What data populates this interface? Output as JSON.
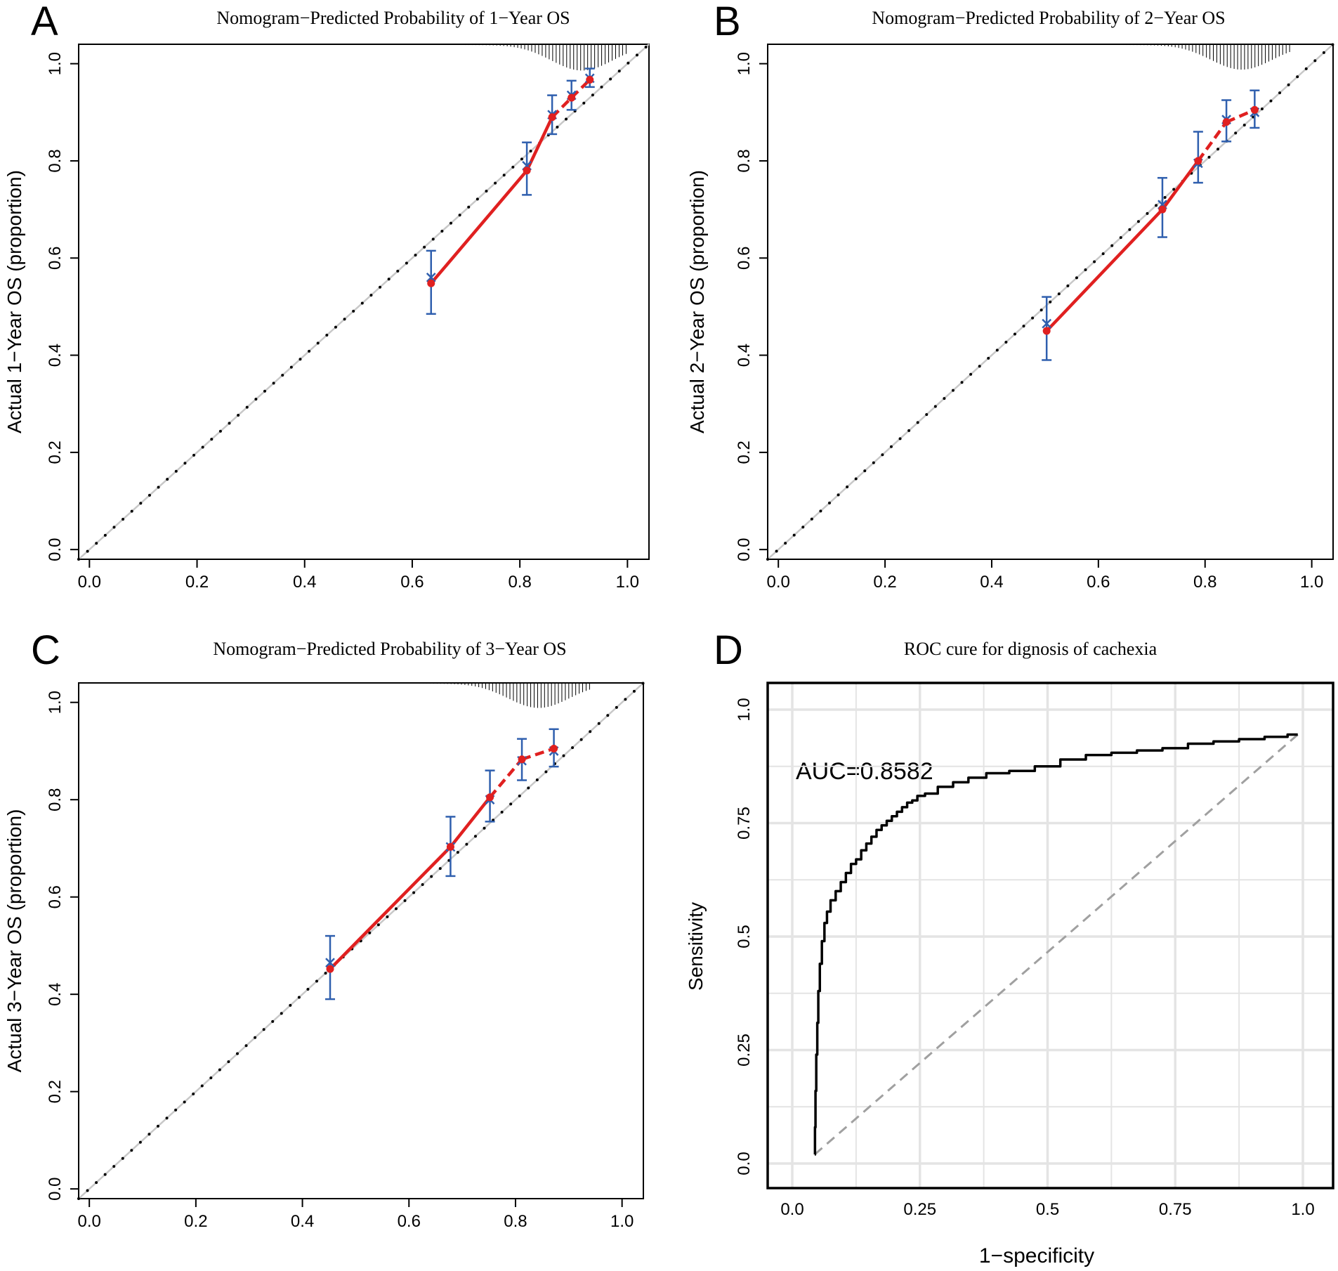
{
  "chart_data": [
    {
      "panel": "A",
      "type": "line",
      "title": "Nomogram−Predicted Probability of 1−Year OS",
      "xlabel": "",
      "ylabel": "Actual 1−Year OS (proportion)",
      "xlim": [
        -0.02,
        1.04
      ],
      "ylim": [
        -0.02,
        1.04
      ],
      "xticks": [
        "0.0",
        "0.2",
        "0.4",
        "0.6",
        "0.8",
        "1.0"
      ],
      "yticks": [
        "0.0",
        "0.2",
        "0.4",
        "0.6",
        "0.8",
        "1.0"
      ],
      "colors": {
        "line": "#e02020",
        "error_bar": "#2f5fae",
        "ideal": "#000000",
        "reference": "#c8c8c8"
      },
      "calibration": {
        "x": [
          0.635,
          0.813,
          0.86,
          0.896,
          0.93
        ],
        "y": [
          0.548,
          0.78,
          0.89,
          0.93,
          0.967
        ],
        "lower": [
          0.485,
          0.73,
          0.855,
          0.905,
          0.952
        ],
        "upper": [
          0.615,
          0.838,
          0.935,
          0.965,
          0.99
        ],
        "observed_x": [
          0.635,
          0.813,
          0.86,
          0.896,
          0.93
        ],
        "observed_y": [
          0.56,
          0.79,
          0.895,
          0.935,
          0.97
        ]
      },
      "rug": [
        {
          "x": 0.87,
          "len": 14
        },
        {
          "x": 0.93,
          "len": 8
        }
      ]
    },
    {
      "panel": "B",
      "type": "line",
      "title": "Nomogram−Predicted Probability of 2−Year OS",
      "xlabel": "",
      "ylabel": "Actual 2−Year OS (proportion)",
      "xlim": [
        -0.02,
        1.04
      ],
      "ylim": [
        -0.02,
        1.04
      ],
      "xticks": [
        "0.0",
        "0.2",
        "0.4",
        "0.6",
        "0.8",
        "1.0"
      ],
      "yticks": [
        "0.0",
        "0.2",
        "0.4",
        "0.6",
        "0.8",
        "1.0"
      ],
      "colors": {
        "line": "#e02020",
        "error_bar": "#2f5fae",
        "ideal": "#000000",
        "reference": "#c8c8c8"
      },
      "calibration": {
        "x": [
          0.503,
          0.72,
          0.787,
          0.84,
          0.893
        ],
        "y": [
          0.45,
          0.7,
          0.8,
          0.88,
          0.905
        ],
        "lower": [
          0.39,
          0.643,
          0.755,
          0.84,
          0.868
        ],
        "upper": [
          0.52,
          0.765,
          0.86,
          0.925,
          0.945
        ],
        "observed_x": [
          0.503,
          0.72,
          0.787,
          0.84,
          0.893
        ],
        "observed_y": [
          0.465,
          0.71,
          0.795,
          0.885,
          0.9
        ]
      }
    },
    {
      "panel": "C",
      "type": "line",
      "title": "Nomogram−Predicted Probability of 3−Year OS",
      "xlabel": "",
      "ylabel": "Actual 3−Year OS (proportion)",
      "xlim": [
        -0.02,
        1.04
      ],
      "ylim": [
        -0.02,
        1.04
      ],
      "xticks": [
        "0.0",
        "0.2",
        "0.4",
        "0.6",
        "0.8",
        "1.0"
      ],
      "yticks": [
        "0.0",
        "0.2",
        "0.4",
        "0.6",
        "0.8",
        "1.0"
      ],
      "colors": {
        "line": "#e02020",
        "error_bar": "#2f5fae",
        "ideal": "#000000",
        "reference": "#c8c8c8"
      },
      "calibration": {
        "x": [
          0.452,
          0.678,
          0.752,
          0.812,
          0.872
        ],
        "y": [
          0.452,
          0.703,
          0.805,
          0.883,
          0.905
        ],
        "lower": [
          0.39,
          0.643,
          0.755,
          0.84,
          0.868
        ],
        "upper": [
          0.52,
          0.765,
          0.86,
          0.925,
          0.945
        ],
        "observed_x": [
          0.452,
          0.678,
          0.752,
          0.812,
          0.872
        ],
        "observed_y": [
          0.465,
          0.703,
          0.8,
          0.88,
          0.9
        ]
      }
    },
    {
      "panel": "D",
      "type": "line",
      "title": "ROC cure for dignosis of cachexia",
      "xlabel": "1−specificity",
      "ylabel": "Sensitivity",
      "xlim": [
        0.0,
        1.0
      ],
      "ylim": [
        0.0,
        1.0
      ],
      "xticks": [
        "0.0",
        "0.25",
        "0.5",
        "0.75",
        "1.0"
      ],
      "yticks": [
        "0.0",
        "0.25",
        "0.5",
        "0.75",
        "1.0"
      ],
      "annotation": "AUC=0.8582",
      "colors": {
        "curve": "#000000",
        "diagonal": "#a0a0a0",
        "grid": "#e4e4e4"
      },
      "roc_x": [
        0.044,
        0.045,
        0.046,
        0.048,
        0.05,
        0.052,
        0.056,
        0.06,
        0.066,
        0.07,
        0.08,
        0.09,
        0.1,
        0.11,
        0.12,
        0.13,
        0.14,
        0.15,
        0.16,
        0.17,
        0.18,
        0.19,
        0.2,
        0.21,
        0.22,
        0.23,
        0.24,
        0.25,
        0.27,
        0.3,
        0.33,
        0.36,
        0.4,
        0.45,
        0.5,
        0.55,
        0.6,
        0.65,
        0.7,
        0.75,
        0.8,
        0.85,
        0.9,
        0.95,
        0.99
      ],
      "roc_y": [
        0.02,
        0.08,
        0.16,
        0.24,
        0.31,
        0.38,
        0.44,
        0.49,
        0.53,
        0.555,
        0.58,
        0.6,
        0.62,
        0.64,
        0.66,
        0.67,
        0.69,
        0.705,
        0.72,
        0.735,
        0.745,
        0.755,
        0.765,
        0.775,
        0.785,
        0.795,
        0.8,
        0.81,
        0.815,
        0.83,
        0.84,
        0.85,
        0.86,
        0.865,
        0.875,
        0.89,
        0.9,
        0.905,
        0.91,
        0.915,
        0.925,
        0.93,
        0.935,
        0.94,
        0.945
      ]
    }
  ]
}
